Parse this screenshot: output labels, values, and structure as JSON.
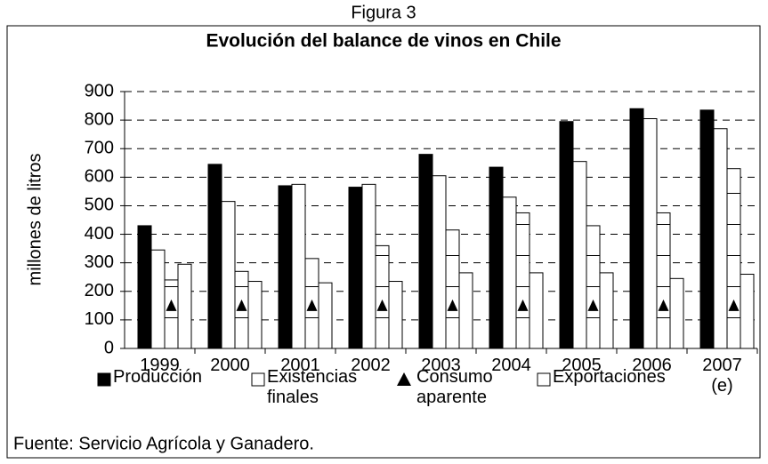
{
  "chart_data": {
    "type": "bar",
    "figure_label": "Figura 3",
    "title": "Evolución del balance de vinos en Chile",
    "y_label": "millones de litros",
    "source": "Fuente: Servicio Agrícola y Ganadero.",
    "categories": [
      "1999",
      "2000",
      "2001",
      "2002",
      "2003",
      "2004",
      "2005",
      "2006",
      "2007 (e)"
    ],
    "series": [
      {
        "name": "Producción",
        "color": "#000000",
        "values": [
          430,
          645,
          570,
          565,
          680,
          635,
          795,
          840,
          835
        ]
      },
      {
        "name": "Existencias finales",
        "color": "#ffffff",
        "values": [
          345,
          515,
          575,
          575,
          605,
          530,
          655,
          805,
          770
        ]
      },
      {
        "name": "Consumo aparente",
        "color": "#ffffff",
        "values": [
          240,
          270,
          315,
          360,
          415,
          475,
          430,
          475,
          630
        ]
      },
      {
        "name": "Exportaciones",
        "color": "#ffffff",
        "values": [
          295,
          235,
          230,
          235,
          265,
          265,
          265,
          245,
          260
        ]
      }
    ],
    "ylim": [
      0,
      900
    ],
    "yticks": [
      0,
      100,
      200,
      300,
      400,
      500,
      600,
      700,
      800,
      900
    ],
    "grid": true
  }
}
